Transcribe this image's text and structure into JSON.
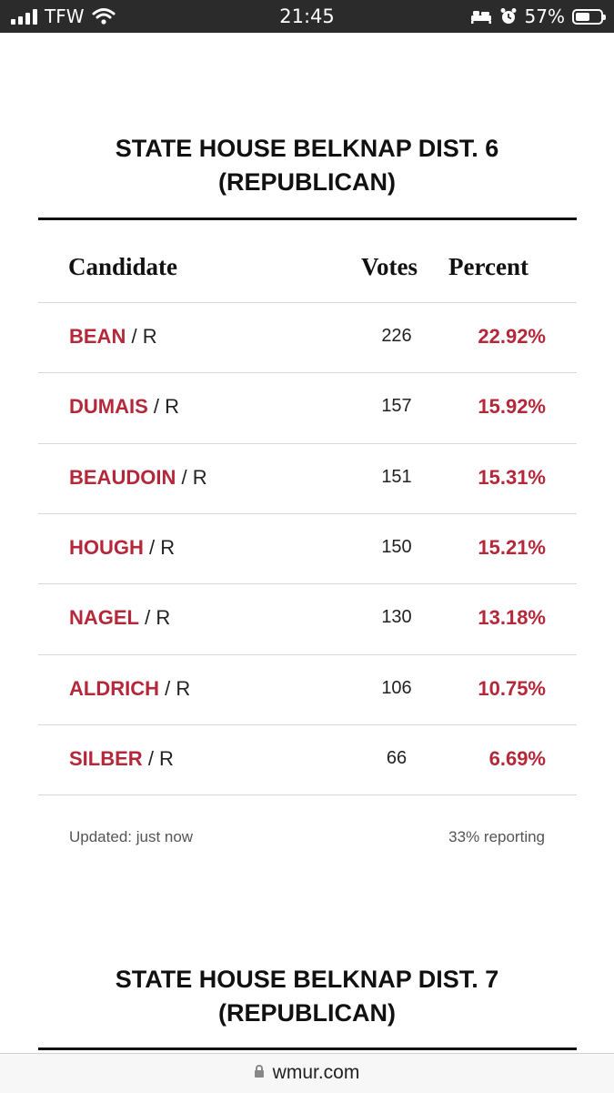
{
  "status_bar": {
    "carrier": "TFW",
    "time": "21:45",
    "battery_percent": "57%",
    "battery_level": 0.57,
    "icons": [
      "signal-icon",
      "wifi-icon",
      "bed-icon",
      "alarm-icon",
      "battery-icon"
    ]
  },
  "race1": {
    "title_line1": "STATE HOUSE BELKNAP DIST. 6",
    "title_line2": "(REPUBLICAN)",
    "headers": {
      "candidate": "Candidate",
      "votes": "Votes",
      "percent": "Percent"
    },
    "rows": [
      {
        "name": "BEAN",
        "party": "/ R",
        "votes": "226",
        "percent": "22.92%"
      },
      {
        "name": "DUMAIS",
        "party": "/ R",
        "votes": "157",
        "percent": "15.92%"
      },
      {
        "name": "BEAUDOIN",
        "party": "/ R",
        "votes": "151",
        "percent": "15.31%"
      },
      {
        "name": "HOUGH",
        "party": "/ R",
        "votes": "150",
        "percent": "15.21%"
      },
      {
        "name": "NAGEL",
        "party": "/ R",
        "votes": "130",
        "percent": "13.18%"
      },
      {
        "name": "ALDRICH",
        "party": "/ R",
        "votes": "106",
        "percent": "10.75%"
      },
      {
        "name": "SILBER",
        "party": "/ R",
        "votes": "66",
        "percent": "6.69%"
      }
    ],
    "updated": "Updated: just now",
    "reporting": "33% reporting"
  },
  "race2": {
    "title_line1": "STATE HOUSE BELKNAP DIST. 7",
    "title_line2": "(REPUBLICAN)"
  },
  "browser": {
    "domain": "wmur.com"
  },
  "colors": {
    "accent_red": "#b5283a",
    "status_bar_bg": "#2b2b2b"
  }
}
